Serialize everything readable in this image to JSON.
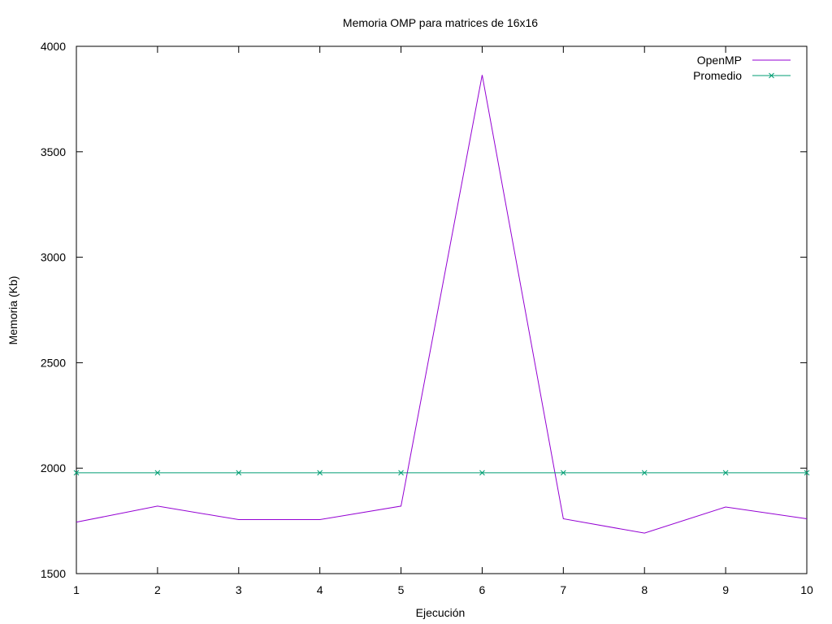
{
  "chart_data": {
    "type": "line",
    "title": "Memoria OMP para matrices de 16x16",
    "xlabel": "Ejecución",
    "ylabel": "Memoria (Kb)",
    "xlim": [
      1,
      10
    ],
    "ylim": [
      1500,
      4000
    ],
    "x_ticks": [
      1,
      2,
      3,
      4,
      5,
      6,
      7,
      8,
      9,
      10
    ],
    "y_ticks": [
      1500,
      2000,
      2500,
      3000,
      3500,
      4000
    ],
    "grid": false,
    "legend_position": "top-right",
    "x": [
      1,
      2,
      3,
      4,
      5,
      6,
      7,
      8,
      9,
      10
    ],
    "series": [
      {
        "name": "OpenMP",
        "color": "#9400d3",
        "marker": "none",
        "values": [
          1744,
          1820,
          1756,
          1756,
          1820,
          3864,
          1760,
          1692,
          1816,
          1760
        ]
      },
      {
        "name": "Promedio",
        "color": "#009e73",
        "marker": "x",
        "values": [
          1978,
          1978,
          1978,
          1978,
          1978,
          1978,
          1978,
          1978,
          1978,
          1978
        ]
      }
    ]
  }
}
